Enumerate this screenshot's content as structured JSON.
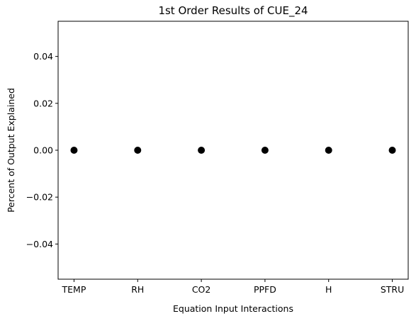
{
  "chart_data": {
    "type": "scatter",
    "title": "1st Order Results of CUE_24",
    "xlabel": "Equation Input Interactions",
    "ylabel": "Percent of Output Explained",
    "categories": [
      "TEMP",
      "RH",
      "CO2",
      "PPFD",
      "H",
      "STRU"
    ],
    "values": [
      0,
      0,
      0,
      0,
      0,
      0
    ],
    "ylim": [
      -0.055,
      0.055
    ],
    "yticks": [
      -0.04,
      -0.02,
      0.0,
      0.02,
      0.04
    ],
    "ytick_labels": [
      "−0.04",
      "−0.02",
      "0.00",
      "0.02",
      "0.04"
    ],
    "grid": false,
    "marker_color": "#000000"
  }
}
